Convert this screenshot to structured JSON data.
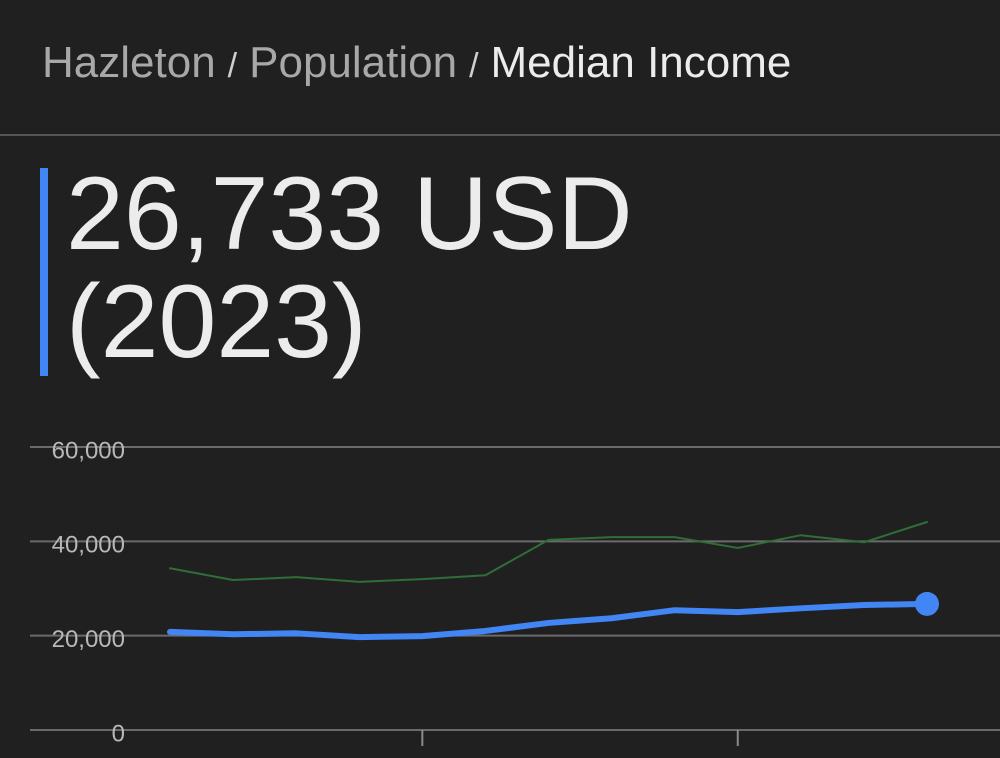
{
  "breadcrumb": {
    "items": [
      "Hazleton",
      "Population",
      "Median Income"
    ],
    "separator": "/"
  },
  "headline": {
    "value": "26,733 USD",
    "year": "(2023)"
  },
  "chart_data": {
    "type": "line",
    "x": [
      2011,
      2012,
      2013,
      2014,
      2015,
      2016,
      2017,
      2018,
      2019,
      2020,
      2021,
      2022,
      2023
    ],
    "series": [
      {
        "color": "#2f6e37",
        "values": [
          34300,
          31800,
          32400,
          31400,
          32000,
          32800,
          40300,
          40900,
          40900,
          38600,
          41300,
          39800,
          44100
        ]
      },
      {
        "color": "#4285f4",
        "values": [
          20800,
          20300,
          20500,
          19700,
          19900,
          21000,
          22700,
          23700,
          25400,
          25000,
          25800,
          26500,
          26733
        ]
      }
    ],
    "xlim": [
      2011,
      2023
    ],
    "xticks": [
      2015,
      2020
    ],
    "ylim": [
      0,
      60000
    ],
    "yticks": [
      0,
      {
        "value": 20000,
        "label": "20,000"
      },
      {
        "value": 40000,
        "label": "40,000"
      },
      {
        "value": 60000,
        "label": "60,000"
      }
    ],
    "grid": true
  }
}
